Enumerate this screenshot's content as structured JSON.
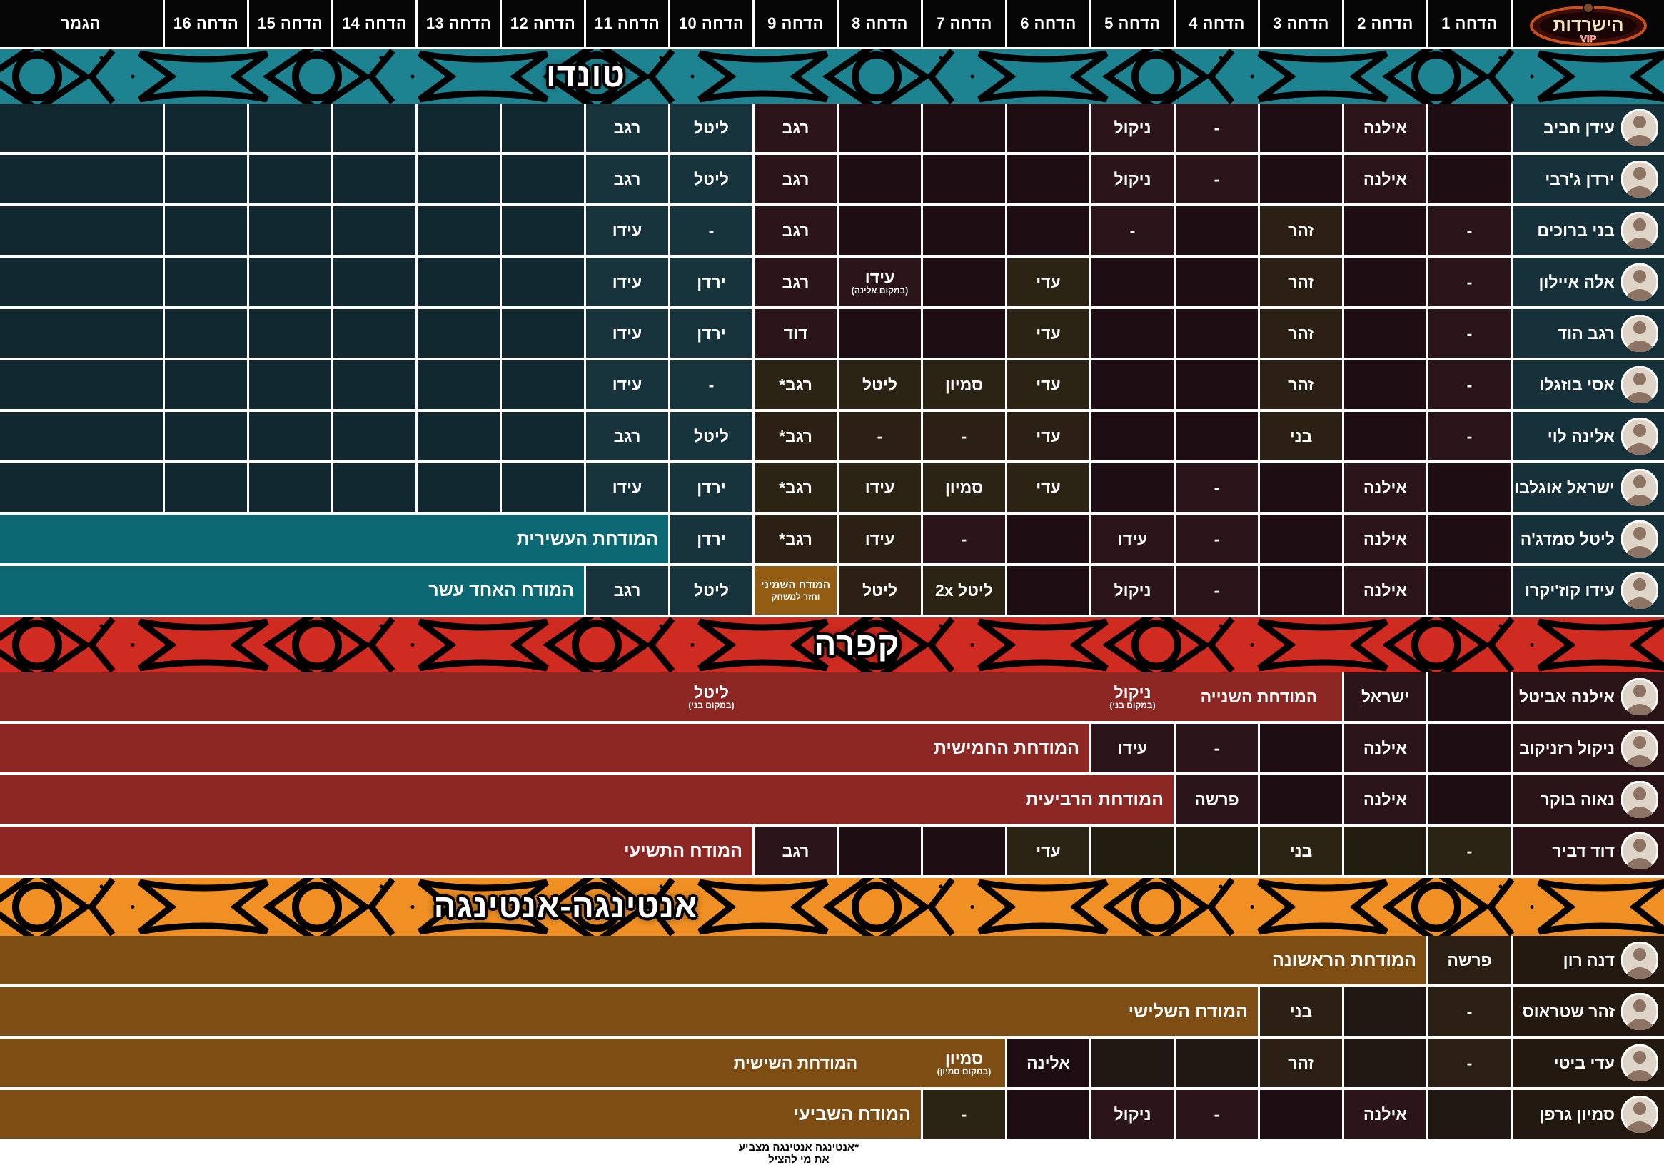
{
  "header": {
    "logo": {
      "title": "הישרדות",
      "subtitle": "VIP"
    },
    "columns": [
      "הדחה 1",
      "הדחה 2",
      "הדחה 3",
      "הדחה 4",
      "הדחה 5",
      "הדחה 6",
      "הדחה 7",
      "הדחה 8",
      "הדחה 9",
      "הדחה 10",
      "הדחה 11",
      "הדחה 12",
      "הדחה 13",
      "הדחה 14",
      "הדחה 15",
      "הדחה 16",
      "הגמר"
    ]
  },
  "palette": {
    "m": "#2b151b",
    "m2": "#1e0e13",
    "s": "#17333c",
    "s2": "#122830",
    "b": "#2b2013",
    "b2": "#201712",
    "o": "#2b2415",
    "o2": "#231d10",
    "t": "#0c6974",
    "r": "#8c2723",
    "br": "#7d4d13",
    "g": "#925d12"
  },
  "tribes": [
    {
      "id": "tundo",
      "label": "טונדו",
      "banner_color": "#1e8391",
      "name_bg": "#16313a",
      "rows": [
        {
          "name": "עידן חביב",
          "cells": [
            {
              "c": "m2"
            },
            {
              "t": "אילנה",
              "c": "m"
            },
            {
              "c": "m2"
            },
            {
              "t": "-",
              "c": "m"
            },
            {
              "t": "ניקול",
              "c": "m"
            },
            {
              "c": "m2"
            },
            {
              "c": "m2"
            },
            {
              "c": "m2"
            },
            {
              "t": "רגב",
              "c": "m"
            },
            {
              "t": "ליטל",
              "c": "s"
            },
            {
              "t": "רגב",
              "c": "s"
            },
            {
              "c": "s2"
            },
            {
              "c": "s2"
            },
            {
              "c": "s2"
            },
            {
              "c": "s2"
            },
            {
              "c": "s2"
            },
            {
              "c": "s2"
            }
          ]
        },
        {
          "name": "ירדן ג'רבי",
          "cells": [
            {
              "c": "m2"
            },
            {
              "t": "אילנה",
              "c": "m"
            },
            {
              "c": "m2"
            },
            {
              "t": "-",
              "c": "m"
            },
            {
              "t": "ניקול",
              "c": "m"
            },
            {
              "c": "m2"
            },
            {
              "c": "m2"
            },
            {
              "c": "m2"
            },
            {
              "t": "רגב",
              "c": "m"
            },
            {
              "t": "ליטל",
              "c": "s"
            },
            {
              "t": "רגב",
              "c": "s"
            },
            {
              "c": "s2"
            },
            {
              "c": "s2"
            },
            {
              "c": "s2"
            },
            {
              "c": "s2"
            },
            {
              "c": "s2"
            },
            {
              "c": "s2"
            }
          ]
        },
        {
          "name": "בני ברוכים",
          "cells": [
            {
              "t": "-",
              "c": "m"
            },
            {
              "c": "m2"
            },
            {
              "t": "זהר",
              "c": "b"
            },
            {
              "c": "m2"
            },
            {
              "t": "-",
              "c": "m"
            },
            {
              "c": "m2"
            },
            {
              "c": "m2"
            },
            {
              "c": "m2"
            },
            {
              "t": "רגב",
              "c": "m"
            },
            {
              "t": "-",
              "c": "s"
            },
            {
              "t": "עידו",
              "c": "s"
            },
            {
              "c": "s2"
            },
            {
              "c": "s2"
            },
            {
              "c": "s2"
            },
            {
              "c": "s2"
            },
            {
              "c": "s2"
            },
            {
              "c": "s2"
            }
          ]
        },
        {
          "name": "אלה איילון",
          "cells": [
            {
              "t": "-",
              "c": "m"
            },
            {
              "c": "m2"
            },
            {
              "t": "זהר",
              "c": "b"
            },
            {
              "c": "m2"
            },
            {
              "c": "m2"
            },
            {
              "t": "עדי",
              "c": "o"
            },
            {
              "c": "m2"
            },
            {
              "t": "עידו",
              "sub": "(במקום אלינה)",
              "c": "m"
            },
            {
              "t": "רגב",
              "c": "m"
            },
            {
              "t": "ירדן",
              "c": "s"
            },
            {
              "t": "עידו",
              "c": "s"
            },
            {
              "c": "s2"
            },
            {
              "c": "s2"
            },
            {
              "c": "s2"
            },
            {
              "c": "s2"
            },
            {
              "c": "s2"
            },
            {
              "c": "s2"
            }
          ]
        },
        {
          "name": "רגב הוד",
          "cells": [
            {
              "t": "-",
              "c": "m"
            },
            {
              "c": "m2"
            },
            {
              "t": "זהר",
              "c": "b"
            },
            {
              "c": "m2"
            },
            {
              "c": "m2"
            },
            {
              "t": "עדי",
              "c": "o"
            },
            {
              "c": "m2"
            },
            {
              "c": "m2"
            },
            {
              "t": "דוד",
              "c": "m"
            },
            {
              "t": "ירדן",
              "c": "s"
            },
            {
              "t": "עידו",
              "c": "s"
            },
            {
              "c": "s2"
            },
            {
              "c": "s2"
            },
            {
              "c": "s2"
            },
            {
              "c": "s2"
            },
            {
              "c": "s2"
            },
            {
              "c": "s2"
            }
          ]
        },
        {
          "name": "אסי בוזגלו",
          "cells": [
            {
              "t": "-",
              "c": "m"
            },
            {
              "c": "m2"
            },
            {
              "t": "זהר",
              "c": "b"
            },
            {
              "c": "m2"
            },
            {
              "c": "m2"
            },
            {
              "t": "עדי",
              "c": "o"
            },
            {
              "t": "סמיון",
              "c": "o"
            },
            {
              "t": "ליטל",
              "c": "o"
            },
            {
              "t": "רגב*",
              "c": "o"
            },
            {
              "t": "-",
              "c": "s"
            },
            {
              "t": "עידו",
              "c": "s"
            },
            {
              "c": "s2"
            },
            {
              "c": "s2"
            },
            {
              "c": "s2"
            },
            {
              "c": "s2"
            },
            {
              "c": "s2"
            },
            {
              "c": "s2"
            }
          ]
        },
        {
          "name": "אלינה לוי",
          "cells": [
            {
              "t": "-",
              "c": "m"
            },
            {
              "c": "m2"
            },
            {
              "t": "בני",
              "c": "b"
            },
            {
              "c": "m2"
            },
            {
              "c": "m2"
            },
            {
              "t": "עדי",
              "c": "b"
            },
            {
              "t": "-",
              "c": "b"
            },
            {
              "t": "-",
              "c": "b"
            },
            {
              "t": "רגב*",
              "c": "b"
            },
            {
              "t": "ליטל",
              "c": "s"
            },
            {
              "t": "רגב",
              "c": "s"
            },
            {
              "c": "s2"
            },
            {
              "c": "s2"
            },
            {
              "c": "s2"
            },
            {
              "c": "s2"
            },
            {
              "c": "s2"
            },
            {
              "c": "s2"
            }
          ]
        },
        {
          "name": "ישראל אוגלבו",
          "cells": [
            {
              "c": "m2"
            },
            {
              "t": "אילנה",
              "c": "m"
            },
            {
              "c": "m2"
            },
            {
              "t": "-",
              "c": "m"
            },
            {
              "c": "m2"
            },
            {
              "t": "עדי",
              "c": "o"
            },
            {
              "t": "סמיון",
              "c": "o"
            },
            {
              "t": "עידו",
              "c": "o"
            },
            {
              "t": "רגב*",
              "c": "o"
            },
            {
              "t": "ירדן",
              "c": "s"
            },
            {
              "t": "עידו",
              "c": "s"
            },
            {
              "c": "s2"
            },
            {
              "c": "s2"
            },
            {
              "c": "s2"
            },
            {
              "c": "s2"
            },
            {
              "c": "s2"
            },
            {
              "c": "s2"
            }
          ]
        },
        {
          "name": "ליטל סמדג'ה",
          "cells": [
            {
              "c": "m2"
            },
            {
              "t": "אילנה",
              "c": "m"
            },
            {
              "c": "m2"
            },
            {
              "t": "-",
              "c": "m"
            },
            {
              "t": "עידו",
              "c": "m"
            },
            {
              "c": "m2"
            },
            {
              "t": "-",
              "c": "m"
            },
            {
              "t": "עידו",
              "c": "b"
            },
            {
              "t": "רגב*",
              "c": "b"
            },
            {
              "t": "ירדן",
              "c": "s"
            },
            {
              "rest": 1,
              "c": "t",
              "label": "המודחת העשירית"
            }
          ]
        },
        {
          "name": "עידו קוז'יקרו",
          "cells": [
            {
              "c": "m2"
            },
            {
              "t": "אילנה",
              "c": "m"
            },
            {
              "c": "m2"
            },
            {
              "t": "-",
              "c": "m"
            },
            {
              "t": "ניקול",
              "c": "m"
            },
            {
              "c": "m2"
            },
            {
              "t": "ליטל 2x",
              "c": "o"
            },
            {
              "t": "ליטל",
              "c": "b"
            },
            {
              "t": "המודח השמיני",
              "sub": "וחזר למשחק",
              "c": "g",
              "small": 1
            },
            {
              "t": "ליטל",
              "c": "s"
            },
            {
              "t": "רגב",
              "c": "s"
            },
            {
              "rest": 1,
              "c": "t",
              "label": "המודח האחד עשר"
            }
          ]
        }
      ]
    },
    {
      "id": "kfara",
      "label": "קפרה",
      "banner_color": "#d02b21",
      "name_bg": "#2a1417",
      "rows": [
        {
          "name": "אילנה אביטל",
          "cells": [
            {
              "c": "m2"
            },
            {
              "t": "ישראל",
              "c": "m"
            },
            {
              "rest": 1,
              "c": "r",
              "texts": [
                {
                  "at": 0,
                  "w": 2,
                  "t": "המודחת השנייה"
                },
                {
                  "at": 2,
                  "w": 1,
                  "t": "ניקול",
                  "sub": "(במקום בני)"
                },
                {
                  "at": 7,
                  "w": 1,
                  "t": "ליטל",
                  "sub": "(במקום בני)"
                }
              ]
            }
          ]
        },
        {
          "name": "ניקול רזניקוב",
          "cells": [
            {
              "c": "m2"
            },
            {
              "t": "אילנה",
              "c": "m"
            },
            {
              "c": "m2"
            },
            {
              "t": "-",
              "c": "m"
            },
            {
              "t": "עידו",
              "c": "m"
            },
            {
              "rest": 1,
              "c": "r",
              "label": "המודחת החמישית"
            }
          ]
        },
        {
          "name": "נאוה בוקר",
          "cells": [
            {
              "c": "m2"
            },
            {
              "t": "אילנה",
              "c": "m"
            },
            {
              "c": "m2"
            },
            {
              "t": "פרשה",
              "c": "m"
            },
            {
              "rest": 1,
              "c": "r",
              "label": "המודחת הרביעית"
            }
          ]
        },
        {
          "name": "דוד דביר",
          "cells": [
            {
              "t": "-",
              "c": "o"
            },
            {
              "c": "o2"
            },
            {
              "t": "בני",
              "c": "o"
            },
            {
              "c": "o2"
            },
            {
              "c": "o2"
            },
            {
              "t": "עדי",
              "c": "o"
            },
            {
              "c": "m2"
            },
            {
              "c": "m2"
            },
            {
              "t": "רגב",
              "c": "m"
            },
            {
              "rest": 1,
              "c": "r",
              "label": "המודח התשיעי"
            }
          ]
        }
      ]
    },
    {
      "id": "antinga",
      "label": "אנטינגה-אנטינגה",
      "banner_color": "#f09024",
      "name_bg": "#241911",
      "rows": [
        {
          "name": "דנה רון",
          "cells": [
            {
              "t": "פרשה",
              "c": "b"
            },
            {
              "rest": 1,
              "c": "br",
              "label": "המודחת הראשונה"
            }
          ]
        },
        {
          "name": "זהר שטראוס",
          "cells": [
            {
              "t": "-",
              "c": "b"
            },
            {
              "c": "b2"
            },
            {
              "t": "בני",
              "c": "b"
            },
            {
              "rest": 1,
              "c": "br",
              "label": "המודח השלישי"
            }
          ]
        },
        {
          "name": "עדי ביטי",
          "cells": [
            {
              "t": "-",
              "c": "b"
            },
            {
              "c": "b2"
            },
            {
              "t": "זהר",
              "c": "b"
            },
            {
              "c": "b2"
            },
            {
              "c": "b2"
            },
            {
              "t": "אלינה",
              "c": "m2"
            },
            {
              "rest": 1,
              "c": "br",
              "texts": [
                {
                  "at": 0,
                  "w": 1,
                  "t": "סמיון",
                  "sub": "(במקום סמיון)"
                },
                {
                  "at": 1,
                  "w": 3,
                  "t": "המודחת השישית"
                }
              ]
            }
          ]
        },
        {
          "name": "סמיון גרפן",
          "cells": [
            {
              "c": "b2"
            },
            {
              "t": "אילנה",
              "c": "m"
            },
            {
              "c": "m2"
            },
            {
              "t": "-",
              "c": "m"
            },
            {
              "t": "ניקול",
              "c": "m"
            },
            {
              "c": "m2"
            },
            {
              "t": "-",
              "c": "o"
            },
            {
              "rest": 1,
              "c": "br",
              "label": "המודח השביעי"
            }
          ]
        }
      ]
    }
  ],
  "footnote": {
    "line1": "*אנטינגה אנטינגה מצביע",
    "line2": "את מי להציל"
  }
}
